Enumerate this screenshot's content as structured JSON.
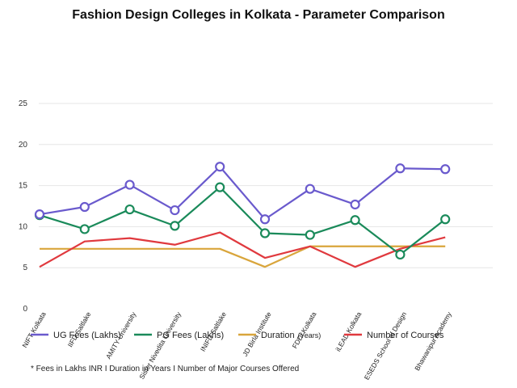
{
  "chart_data": {
    "type": "line",
    "title": "Fashion Design Colleges in Kolkata - Parameter Comparison",
    "categories": [
      "NIFT Kolkata",
      "IIFD Saltlake",
      "AMITY University",
      "Sister Nivedita University",
      "INIFD Saltlake",
      "JD Birla Institute",
      "FDDI Kolkata",
      "iLEAD Kolkata",
      "ESEDS School of Design",
      "Bhawanipur Academy"
    ],
    "ylim": [
      0,
      25
    ],
    "yticks": [
      "0",
      "5",
      "10",
      "15",
      "20",
      "25"
    ],
    "grid": true,
    "legend_position": "bottom",
    "series": [
      {
        "name": "UG Fees (Lakhs)",
        "color": "#6a5acd",
        "markers": true,
        "values": [
          11.5,
          12.4,
          15.1,
          12.0,
          17.3,
          10.9,
          14.6,
          12.7,
          17.1,
          17.0
        ]
      },
      {
        "name": "PG Fees (Lakhs)",
        "color": "#1a8a5a",
        "markers": true,
        "values": [
          11.4,
          9.7,
          12.1,
          10.1,
          14.8,
          9.2,
          9.0,
          10.8,
          6.6,
          10.9
        ]
      },
      {
        "name": "Duration",
        "name_suffix": "(Years)",
        "color": "#d9a53b",
        "markers": false,
        "values": [
          7.3,
          7.3,
          7.3,
          7.3,
          7.3,
          5.1,
          7.6,
          7.6,
          7.6,
          7.6
        ]
      },
      {
        "name": "Number of Courses",
        "color": "#e0393e",
        "markers": false,
        "values": [
          5.1,
          8.2,
          8.6,
          7.8,
          9.3,
          6.2,
          7.6,
          5.1,
          7.3,
          8.7
        ]
      }
    ],
    "footnote": "* Fees in Lakhs INR I Duration in Years I Number of Major Courses Offered"
  }
}
